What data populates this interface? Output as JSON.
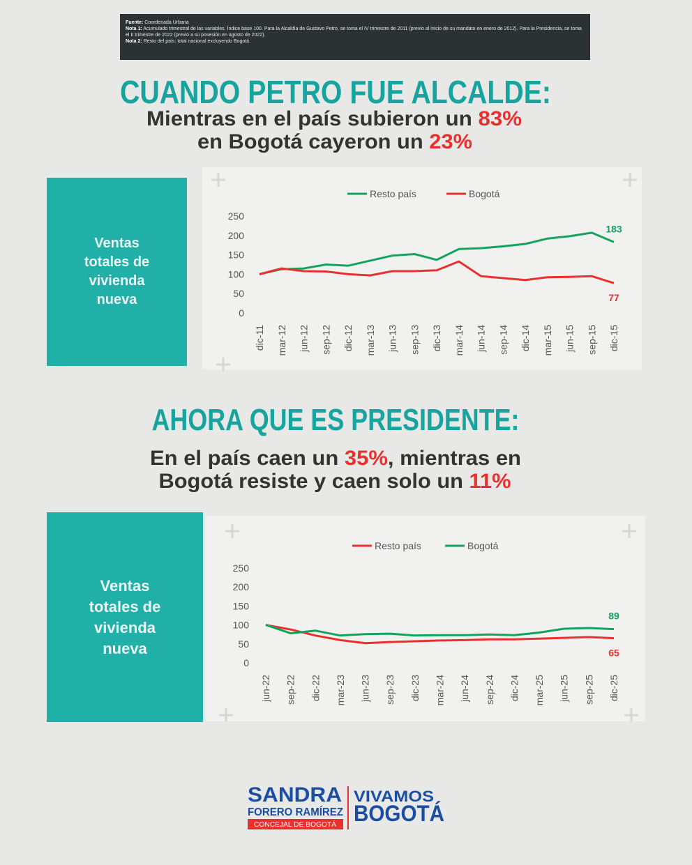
{
  "notes": {
    "source": {
      "label": "Fuente:",
      "text": "Coordenada Urbana"
    },
    "note1": {
      "label": "Nota 1:",
      "text": "Acumulado trimestral de las variables. Índice base 100. Para la Alcaldía de Gustavo Petro, se toma el IV trimestre de 2011 (previo al inicio de su mandato en enero de 2012). Para la Presidencia, se toma el II trimestre de 2022 (previo a su posesión en agosto de 2022)."
    },
    "note2": {
      "label": "Nota 2:",
      "text": "Resto del país: total nacional excluyendo Bogotá."
    }
  },
  "sections": [
    {
      "title": "CUANDO PETRO FUE ALCALDE:",
      "lines": [
        [
          "Mientras en el país subieron un",
          "83%"
        ],
        [
          "en Bogotá cayeron un",
          "23%"
        ]
      ],
      "box_label": "Ventas totales de vivienda nueva"
    },
    {
      "title": "AHORA QUE ES PRESIDENTE:",
      "lines": [
        [
          "En el país caen un",
          "35%",
          ", mientras en"
        ],
        [
          "Bogotá resiste y caen solo un",
          "11%"
        ]
      ],
      "box_label": "Ventas totales de vivienda nueva"
    }
  ],
  "chart_data": [
    {
      "type": "line",
      "categories": [
        "dic-11",
        "mar-12",
        "jun-12",
        "sep-12",
        "dic-12",
        "mar-13",
        "jun-13",
        "sep-13",
        "dic-13",
        "mar-14",
        "jun-14",
        "sep-14",
        "dic-14",
        "mar-15",
        "jun-15",
        "sep-15",
        "dic-15"
      ],
      "series": [
        {
          "name": "Resto país",
          "color": "#14a35c",
          "values": [
            100,
            113,
            115,
            125,
            122,
            135,
            148,
            152,
            137,
            165,
            167,
            172,
            178,
            192,
            198,
            207,
            183
          ]
        },
        {
          "name": "Bogotá",
          "color": "#e8312f",
          "values": [
            100,
            115,
            108,
            107,
            100,
            97,
            108,
            108,
            110,
            133,
            95,
            90,
            85,
            92,
            93,
            95,
            77
          ]
        }
      ],
      "ylim": [
        0,
        250
      ],
      "yticks": [
        0,
        50,
        100,
        150,
        200,
        250
      ],
      "grid": false,
      "legend": "top"
    },
    {
      "type": "line",
      "categories": [
        "jun-22",
        "sep-22",
        "dic-22",
        "mar-23",
        "jun-23",
        "sep-23",
        "dic-23",
        "mar-24",
        "jun-24",
        "sep-24",
        "dic-24",
        "mar-25",
        "jun-25",
        "sep-25",
        "dic-25"
      ],
      "series": [
        {
          "name": "Resto país",
          "color": "#e8312f",
          "values": [
            100,
            88,
            72,
            60,
            52,
            55,
            57,
            59,
            60,
            62,
            62,
            64,
            66,
            68,
            65
          ]
        },
        {
          "name": "Bogotá",
          "color": "#14a35c",
          "values": [
            100,
            78,
            85,
            72,
            76,
            77,
            72,
            73,
            73,
            75,
            73,
            80,
            90,
            92,
            89
          ]
        }
      ],
      "ylim": [
        0,
        250
      ],
      "yticks": [
        0,
        50,
        100,
        150,
        200,
        250
      ],
      "grid": false,
      "legend": "top"
    }
  ],
  "footer": {
    "name": "SANDRA",
    "surname": "FORERO RAMÍREZ",
    "role": "CONCEJAL DE BOGOTÁ",
    "party_1": "VIVAMOS",
    "party_2": "BOGOTÁ"
  }
}
